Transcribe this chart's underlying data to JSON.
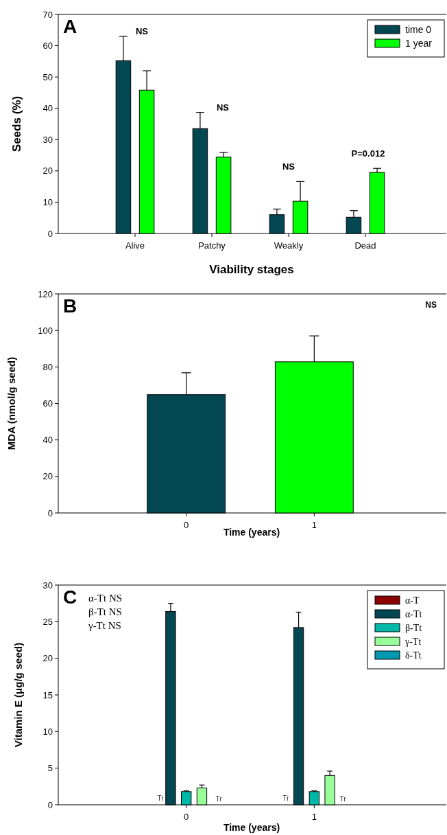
{
  "chart_data": [
    {
      "type": "bar",
      "title": "A",
      "xlabel": "Viability stages",
      "ylabel": "Seeds (%)",
      "categories": [
        "Alive",
        "Patchy",
        "Weakly",
        "Dead"
      ],
      "series": [
        {
          "name": "time 0",
          "color": "#034752",
          "values": [
            55.2,
            33.5,
            6.0,
            5.2
          ],
          "errors": [
            [
              55.2,
              63.0
            ],
            [
              33.5,
              38.7
            ],
            [
              6.0,
              7.8
            ],
            [
              5.2,
              7.3
            ]
          ]
        },
        {
          "name": "1 year",
          "color": "#00ff00",
          "values": [
            45.8,
            24.4,
            10.3,
            19.5
          ],
          "errors": [
            [
              45.8,
              52.0
            ],
            [
              24.4,
              25.9
            ],
            [
              10.3,
              16.6
            ],
            [
              19.5,
              20.8
            ]
          ]
        }
      ],
      "ylim": [
        0,
        70
      ],
      "yticks": [
        0,
        10,
        20,
        30,
        40,
        50,
        60,
        70
      ],
      "legend": "top right",
      "annotations": [
        "NS",
        "NS",
        "NS",
        "P=0.012"
      ]
    },
    {
      "type": "bar",
      "title": "B",
      "xlabel": "Time (years)",
      "ylabel": "MDA (nmol/g seed)",
      "categories": [
        "0",
        "1"
      ],
      "values": [
        64.8,
        82.8
      ],
      "colors": [
        "#034752",
        "#00ff00"
      ],
      "errors": [
        [
          64.8,
          76.8
        ],
        [
          82.8,
          97.0
        ]
      ],
      "ylim": [
        0,
        120
      ],
      "yticks": [
        0,
        20,
        40,
        60,
        80,
        100,
        120
      ],
      "annotations": [
        "NS"
      ]
    },
    {
      "type": "bar",
      "title": "C",
      "xlabel": "Time (years)",
      "ylabel": "Vitamin E (μg/g seed)",
      "categories": [
        "0",
        "1"
      ],
      "series": [
        {
          "name": "α-T",
          "color": "#8b0000",
          "values": [
            null,
            null
          ]
        },
        {
          "name": "α-Tt",
          "color": "#034752",
          "values": [
            26.4,
            24.2
          ],
          "errors": [
            [
              26.4,
              27.5
            ],
            [
              24.2,
              26.3
            ]
          ]
        },
        {
          "name": "β-Tt",
          "color": "#00b8a8",
          "values": [
            1.8,
            1.8
          ],
          "errors": [
            [
              1.8,
              1.9
            ],
            [
              1.8,
              1.9
            ]
          ]
        },
        {
          "name": "γ-Tt",
          "color": "#99ff99",
          "values": [
            2.3,
            4.0
          ],
          "errors": [
            [
              2.3,
              2.7
            ],
            [
              4.0,
              4.6
            ]
          ]
        },
        {
          "name": "δ-Tt",
          "color": "#0099b0",
          "values": [
            null,
            null
          ]
        }
      ],
      "ylim": [
        0,
        30
      ],
      "yticks": [
        0,
        5,
        10,
        15,
        20,
        25,
        30
      ],
      "legend": "top right",
      "annotations": [
        "α-Tt NS",
        "β-Tt NS",
        "γ-Tt NS",
        "Tr",
        "Tr",
        "Tr",
        "Tr"
      ]
    }
  ]
}
